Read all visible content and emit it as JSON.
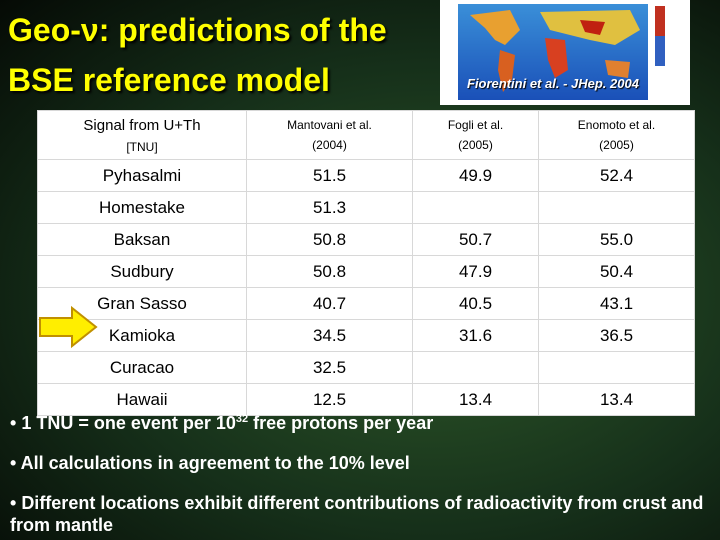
{
  "title": [
    "Geo-ν: predictions of the",
    "BSE reference model"
  ],
  "map_caption": "Fiorentini et al. - JHep. 2004",
  "table": {
    "header": [
      {
        "name": "Signal from U+Th",
        "sub": "[TNU]"
      },
      {
        "name": "Mantovani et al.",
        "sub": "(2004)"
      },
      {
        "name": "Fogli et al.",
        "sub": "(2005)"
      },
      {
        "name": "Enomoto et al.",
        "sub": "(2005)"
      }
    ],
    "rows": [
      [
        "Pyhasalmi",
        "51.5",
        "49.9",
        "52.4"
      ],
      [
        "Homestake",
        "51.3",
        null,
        null
      ],
      [
        "Baksan",
        "50.8",
        "50.7",
        "55.0"
      ],
      [
        "Sudbury",
        "50.8",
        "47.9",
        "50.4"
      ],
      [
        "Gran Sasso",
        "40.7",
        "40.5",
        "43.1"
      ],
      [
        "Kamioka",
        "34.5",
        "31.6",
        "36.5"
      ],
      [
        "Curacao",
        "32.5",
        null,
        null
      ],
      [
        "Hawaii",
        "12.5",
        "13.4",
        "13.4"
      ]
    ]
  },
  "bullets": [
    {
      "text": "1 TNU = one event per 10",
      "sup": "32",
      "tail": " free protons per year"
    },
    {
      "text": "All calculations in agreement to the 10% level"
    },
    {
      "text": "Different locations exhibit different contributions of radioactivity from crust and from mantle"
    }
  ]
}
